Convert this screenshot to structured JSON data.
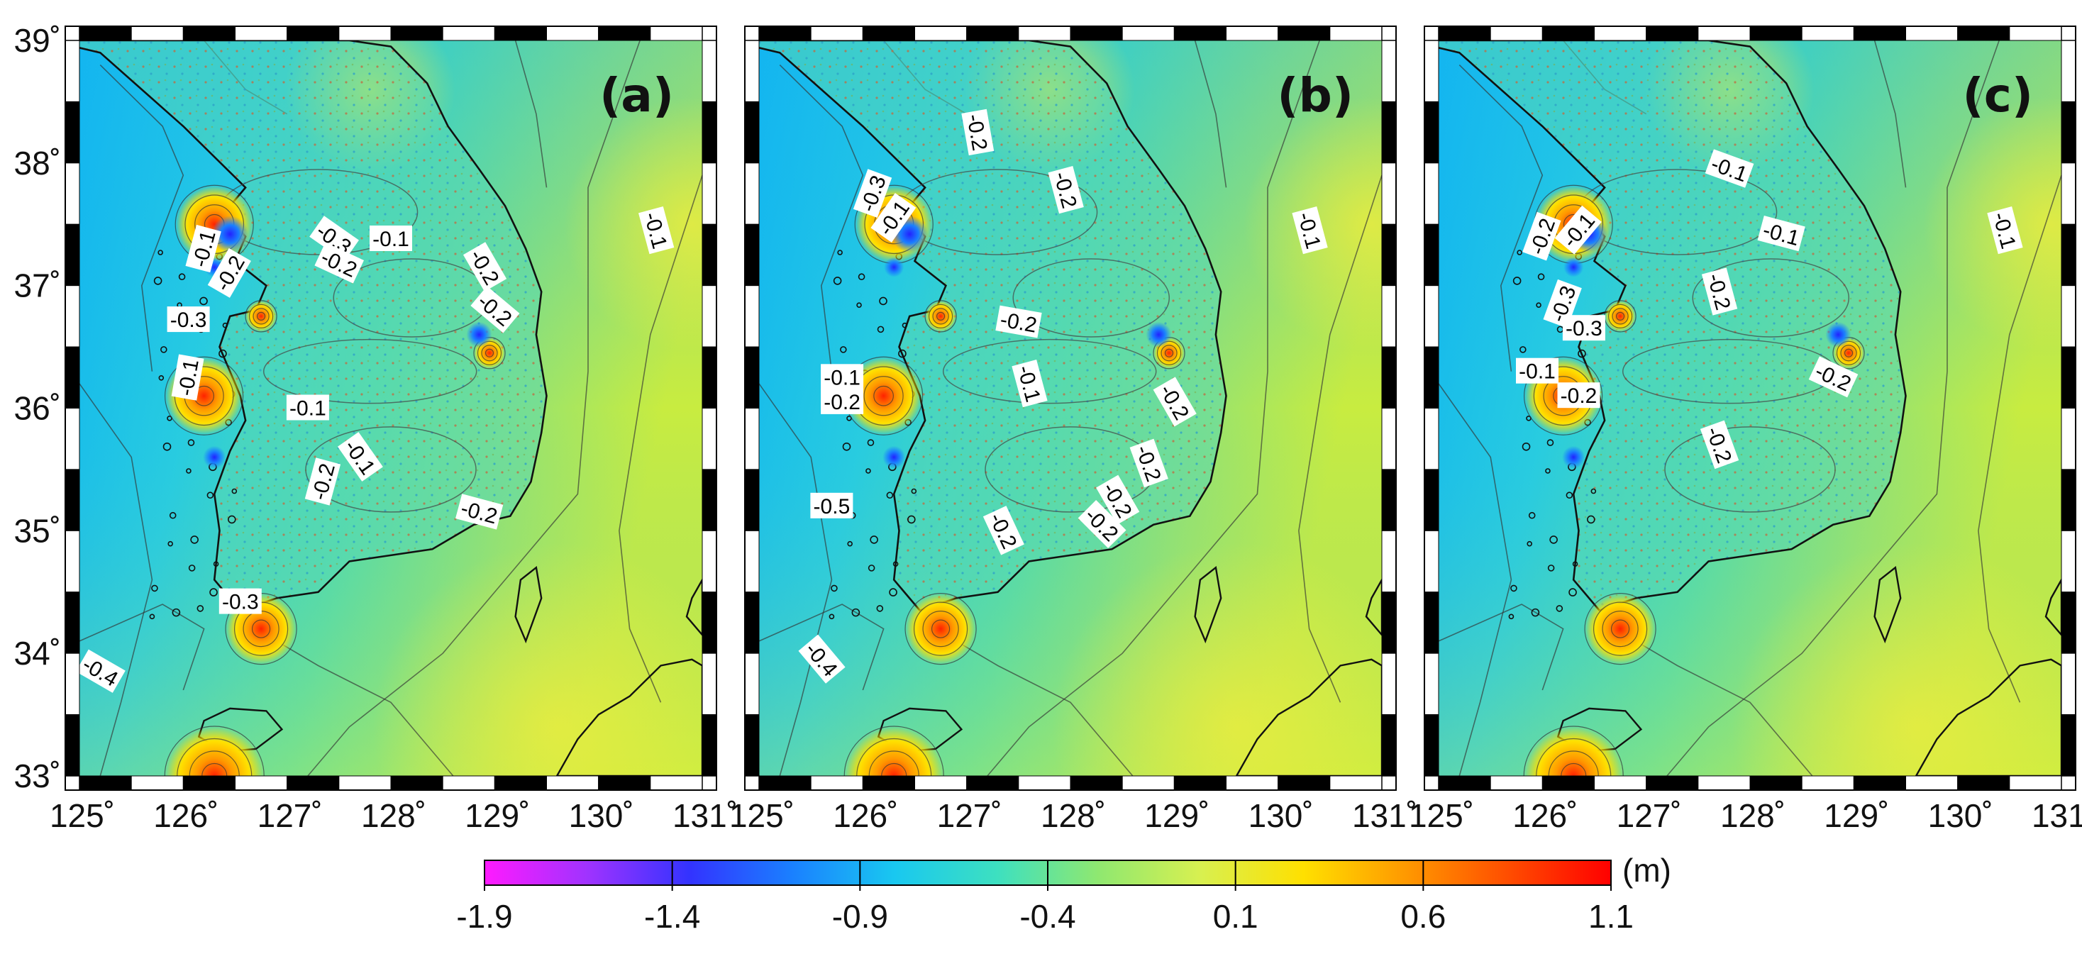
{
  "panels": [
    {
      "tag": "(a)",
      "labels": [
        {
          "text": "-0.1",
          "lon": 126.2,
          "lat": 37.3,
          "rot": 75
        },
        {
          "text": "-0.2",
          "lon": 126.45,
          "lat": 37.1,
          "rot": 60
        },
        {
          "text": "-0.3",
          "lon": 127.45,
          "lat": 37.38,
          "rot": -35
        },
        {
          "text": "-0.2",
          "lon": 127.5,
          "lat": 37.18,
          "rot": -25
        },
        {
          "text": "-0.1",
          "lon": 128.0,
          "lat": 37.38,
          "rot": 0
        },
        {
          "text": "-0.2",
          "lon": 128.9,
          "lat": 37.15,
          "rot": -60
        },
        {
          "text": "-0.2",
          "lon": 129.0,
          "lat": 36.8,
          "rot": -40
        },
        {
          "text": "-0.3",
          "lon": 126.05,
          "lat": 36.72,
          "rot": 0
        },
        {
          "text": "-0.1",
          "lon": 126.05,
          "lat": 36.25,
          "rot": 80
        },
        {
          "text": "-0.1",
          "lon": 127.2,
          "lat": 36.0,
          "rot": 0
        },
        {
          "text": "-0.2",
          "lon": 127.35,
          "lat": 35.4,
          "rot": 75
        },
        {
          "text": "-0.1",
          "lon": 127.7,
          "lat": 35.6,
          "rot": -55
        },
        {
          "text": "-0.2",
          "lon": 128.85,
          "lat": 35.15,
          "rot": -15
        },
        {
          "text": "-0.3",
          "lon": 126.55,
          "lat": 34.42,
          "rot": 0
        },
        {
          "text": "-0.1",
          "lon": 130.55,
          "lat": 37.45,
          "rot": -75
        },
        {
          "text": "-0.4",
          "lon": 125.2,
          "lat": 33.85,
          "rot": -30
        }
      ]
    },
    {
      "tag": "(b)",
      "labels": [
        {
          "text": "-0.2",
          "lon": 127.1,
          "lat": 38.25,
          "rot": -80
        },
        {
          "text": "-0.2",
          "lon": 127.95,
          "lat": 37.78,
          "rot": -75
        },
        {
          "text": "-0.3",
          "lon": 126.1,
          "lat": 37.75,
          "rot": 70
        },
        {
          "text": "-0.1",
          "lon": 126.3,
          "lat": 37.55,
          "rot": 55
        },
        {
          "text": "-0.2",
          "lon": 127.5,
          "lat": 36.7,
          "rot": -10
        },
        {
          "text": "-0.1",
          "lon": 127.6,
          "lat": 36.2,
          "rot": -75
        },
        {
          "text": "-0.1",
          "lon": 125.8,
          "lat": 36.25,
          "rot": 0
        },
        {
          "text": "-0.2",
          "lon": 125.8,
          "lat": 36.05,
          "rot": 0
        },
        {
          "text": "-0.2",
          "lon": 129.0,
          "lat": 36.05,
          "rot": -60
        },
        {
          "text": "-0.2",
          "lon": 128.75,
          "lat": 35.55,
          "rot": -70
        },
        {
          "text": "-0.2",
          "lon": 128.45,
          "lat": 35.25,
          "rot": -60
        },
        {
          "text": "-0.2",
          "lon": 128.3,
          "lat": 35.05,
          "rot": -45
        },
        {
          "text": "-0.2",
          "lon": 127.35,
          "lat": 35.0,
          "rot": -65
        },
        {
          "text": "-0.5",
          "lon": 125.7,
          "lat": 35.2,
          "rot": 0
        },
        {
          "text": "-0.1",
          "lon": 130.3,
          "lat": 37.45,
          "rot": -75
        },
        {
          "text": "-0.4",
          "lon": 125.6,
          "lat": 33.95,
          "rot": -50
        }
      ]
    },
    {
      "tag": "(c)",
      "labels": [
        {
          "text": "-0.1",
          "lon": 127.8,
          "lat": 37.95,
          "rot": -20
        },
        {
          "text": "-0.2",
          "lon": 126.0,
          "lat": 37.4,
          "rot": 70
        },
        {
          "text": "-0.1",
          "lon": 126.35,
          "lat": 37.45,
          "rot": 50
        },
        {
          "text": "-0.1",
          "lon": 128.3,
          "lat": 37.42,
          "rot": -15
        },
        {
          "text": "-0.2",
          "lon": 127.7,
          "lat": 36.95,
          "rot": -75
        },
        {
          "text": "-0.3",
          "lon": 126.2,
          "lat": 36.85,
          "rot": 70
        },
        {
          "text": "-0.3",
          "lon": 126.4,
          "lat": 36.65,
          "rot": 0
        },
        {
          "text": "-0.1",
          "lon": 125.95,
          "lat": 36.3,
          "rot": 0
        },
        {
          "text": "-0.2",
          "lon": 126.35,
          "lat": 36.1,
          "rot": 0
        },
        {
          "text": "-0.2",
          "lon": 127.7,
          "lat": 35.7,
          "rot": -70
        },
        {
          "text": "-0.2",
          "lon": 128.8,
          "lat": 36.25,
          "rot": -25
        },
        {
          "text": "-0.1",
          "lon": 130.45,
          "lat": 37.45,
          "rot": -75
        }
      ]
    }
  ],
  "axes": {
    "lon_ticks": [
      "125˚",
      "126˚",
      "127˚",
      "128˚",
      "129˚",
      "130˚",
      "131˚"
    ],
    "lat_ticks": [
      "33˚",
      "34˚",
      "35˚",
      "36˚",
      "37˚",
      "38˚",
      "39˚"
    ],
    "lon_range": [
      125,
      131
    ],
    "lat_range": [
      33,
      39
    ]
  },
  "colorbar": {
    "unit": "(m)",
    "range": [
      -1.9,
      1.1
    ],
    "ticks": [
      "-1.9",
      "-1.4",
      "-0.9",
      "-0.4",
      "0.1",
      "0.6",
      "1.1"
    ],
    "colors": [
      "#ff1aff",
      "#a033ff",
      "#3333ff",
      "#1a80ff",
      "#19c8f0",
      "#3de0c0",
      "#8fe870",
      "#d8f050",
      "#ffe000",
      "#ff9900",
      "#ff4d00",
      "#ff0000"
    ]
  }
}
